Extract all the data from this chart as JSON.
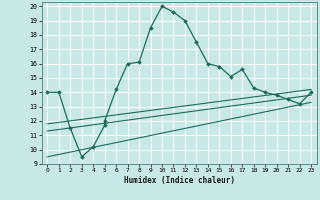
{
  "xlabel": "Humidex (Indice chaleur)",
  "bg_color": "#c8e8e8",
  "line_color": "#1a6b5a",
  "grid_color": "#ffffff",
  "xlim": [
    -0.5,
    23.5
  ],
  "ylim": [
    9,
    20.3
  ],
  "xticks": [
    0,
    1,
    2,
    3,
    4,
    5,
    6,
    7,
    8,
    9,
    10,
    11,
    12,
    13,
    14,
    15,
    16,
    17,
    18,
    19,
    20,
    21,
    22,
    23
  ],
  "yticks": [
    9,
    10,
    11,
    12,
    13,
    14,
    15,
    16,
    17,
    18,
    19,
    20
  ],
  "main_x": [
    0,
    1,
    2,
    3,
    4,
    5,
    5,
    6,
    7,
    8,
    9,
    10,
    11,
    12,
    13,
    14,
    15,
    16,
    17,
    18,
    19,
    20,
    21,
    22,
    23
  ],
  "main_y": [
    14,
    14,
    11.5,
    9.5,
    10.2,
    11.7,
    12.0,
    14.2,
    16.0,
    16.1,
    18.5,
    20,
    19.6,
    19.0,
    17.5,
    16.0,
    15.8,
    15.1,
    15.6,
    14.3,
    14.0,
    13.8,
    13.5,
    13.2,
    14.0
  ],
  "line1_x": [
    0,
    23
  ],
  "line1_y": [
    9.5,
    13.3
  ],
  "line2_x": [
    0,
    23
  ],
  "line2_y": [
    11.3,
    13.8
  ],
  "line3_x": [
    0,
    23
  ],
  "line3_y": [
    11.8,
    14.2
  ]
}
